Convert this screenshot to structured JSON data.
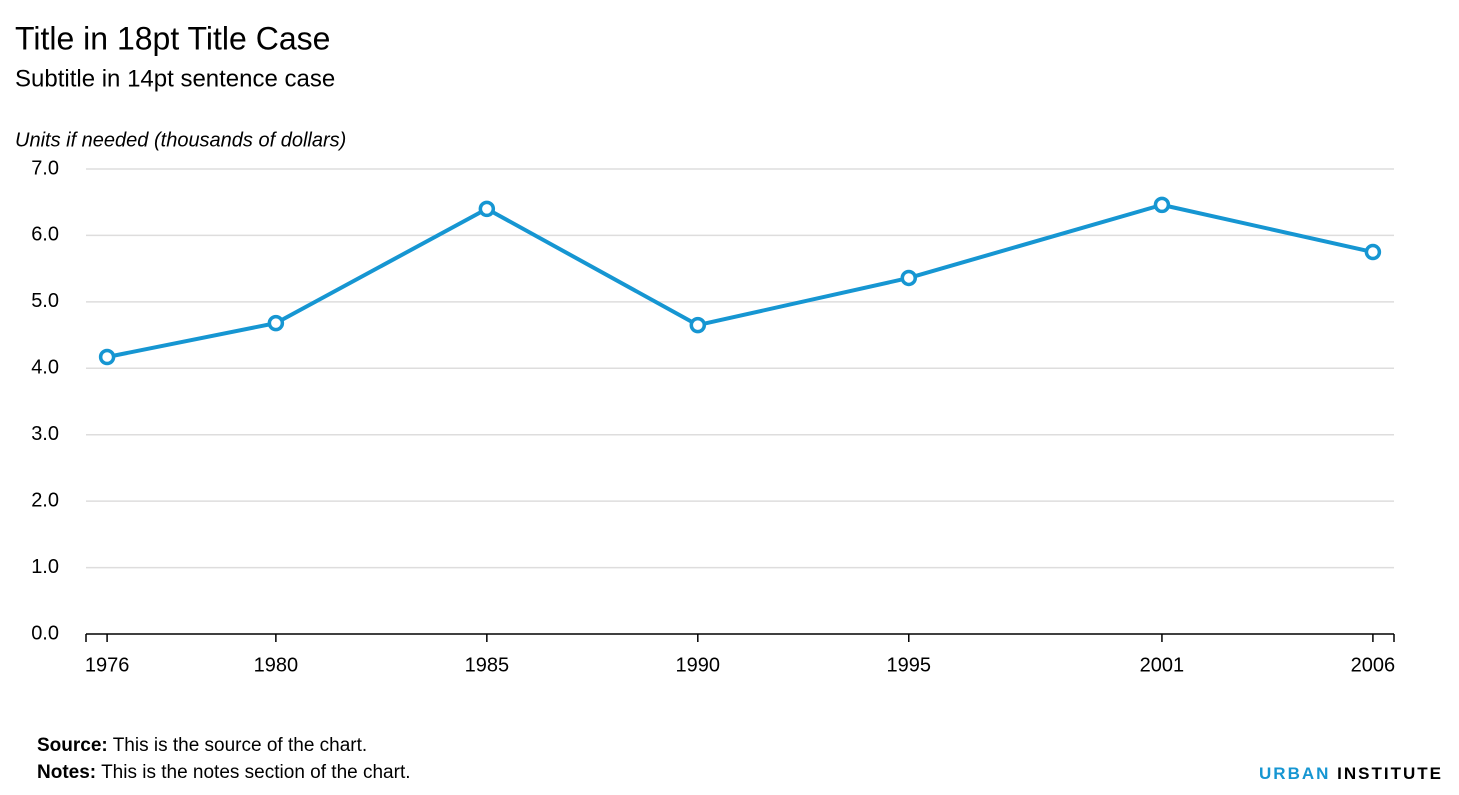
{
  "chart_data": {
    "type": "line",
    "title": "Title in 18pt Title Case",
    "subtitle": "Subtitle in 14pt sentence case",
    "y_axis_label": "Units if needed (thousands of dollars)",
    "x": [
      1976,
      1980,
      1985,
      1990,
      1995,
      2001,
      2006
    ],
    "values": [
      4.17,
      4.68,
      6.4,
      4.65,
      5.36,
      6.46,
      5.75
    ],
    "color": "#1696d2",
    "xlim": [
      1975.5,
      2006.5
    ],
    "xticks": [
      1976,
      1980,
      1985,
      1990,
      1995,
      2001,
      2006
    ],
    "ylim": [
      0,
      7
    ],
    "yticks": [
      {
        "value": 0,
        "label": "0.0"
      },
      {
        "value": 1,
        "label": "1.0"
      },
      {
        "value": 2,
        "label": "2.0"
      },
      {
        "value": 3,
        "label": "3.0"
      },
      {
        "value": 4,
        "label": "4.0"
      },
      {
        "value": 5,
        "label": "5.0"
      },
      {
        "value": 6,
        "label": "6.0"
      },
      {
        "value": 7,
        "label": "7.0"
      }
    ],
    "grid": true,
    "source_label": "Source:",
    "source_text": "This is the source of the chart.",
    "notes_label": "Notes:",
    "notes_text": "This is the notes section of the chart.",
    "brand": [
      "URBAN",
      "INSTITUTE"
    ]
  }
}
